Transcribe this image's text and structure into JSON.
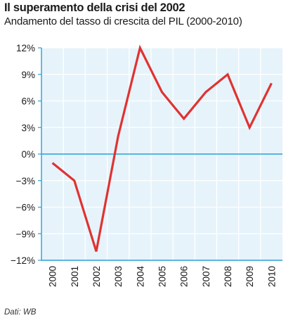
{
  "header": {
    "title": "Il superamento della crisi del 2002",
    "subtitle": "Andamento del tasso di crescita del PIL (2000-2010)"
  },
  "footer": {
    "source": "Dati: WB"
  },
  "colors": {
    "plot_background": "#e6f3fa",
    "line": "#e03232",
    "gridline": "#ffffff",
    "zero_line": "#2a9fd6",
    "axis": "#2a9fd6",
    "text": "#1a1a1a"
  },
  "chart_data": {
    "type": "line",
    "x": [
      "2000",
      "2001",
      "2002",
      "2003",
      "2004",
      "2005",
      "2006",
      "2007",
      "2008",
      "2009",
      "2010"
    ],
    "series": [
      {
        "values": [
          -1,
          -3,
          -11,
          2,
          12,
          7,
          4,
          7,
          9,
          3,
          8
        ]
      }
    ],
    "yticks": [
      12,
      9,
      6,
      3,
      0,
      -3,
      -6,
      -9,
      -12
    ],
    "ytick_labels": [
      "12%",
      "9%",
      "6%",
      "3%",
      "0%",
      "−3%",
      "−6%",
      "−9%",
      "−12%"
    ],
    "ylim": [
      -12,
      12
    ],
    "grid": true,
    "legend": "none"
  }
}
